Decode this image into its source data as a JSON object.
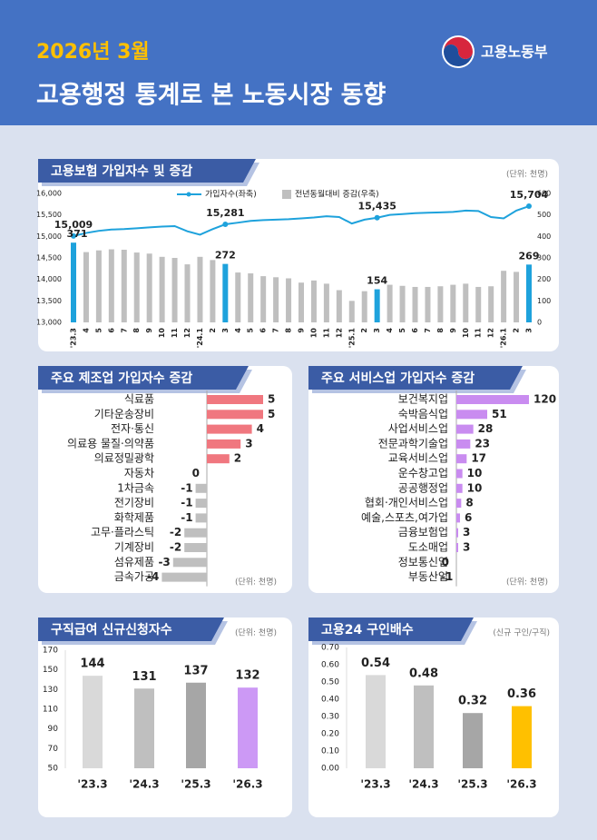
{
  "header": {
    "date": "2026년 3월",
    "title": "고용행정 통계로 본 노동시장 동향",
    "logo": "고용노동부"
  },
  "chart_data": [
    {
      "type": "combo",
      "title": "고용보험 가입자수 및 증감",
      "unit": "(단위: 천명)",
      "categories": [
        "'23.3",
        "4",
        "5",
        "6",
        "7",
        "8",
        "9",
        "10",
        "11",
        "12",
        "'24.1",
        "2",
        "3",
        "4",
        "5",
        "6",
        "7",
        "8",
        "9",
        "10",
        "11",
        "12",
        "'25.1",
        "2",
        "3",
        "4",
        "5",
        "6",
        "7",
        "8",
        "9",
        "10",
        "11",
        "12",
        "'26.1",
        "2",
        "3"
      ],
      "series": [
        {
          "name": "가입자수(좌축)",
          "type": "line",
          "color": "#1ea2dc",
          "values": [
            15009,
            15080,
            15130,
            15160,
            15170,
            15190,
            15210,
            15230,
            15240,
            15120,
            15040,
            15170,
            15281,
            15320,
            15360,
            15380,
            15390,
            15400,
            15420,
            15440,
            15470,
            15450,
            15300,
            15390,
            15435,
            15500,
            15520,
            15540,
            15550,
            15560,
            15570,
            15600,
            15590,
            15450,
            15420,
            15600,
            15704
          ],
          "value_labels": [
            "15,009",
            null,
            null,
            null,
            null,
            null,
            null,
            null,
            null,
            null,
            null,
            null,
            "15,281",
            null,
            null,
            null,
            null,
            null,
            null,
            null,
            null,
            null,
            null,
            null,
            "15,435",
            null,
            null,
            null,
            null,
            null,
            null,
            null,
            null,
            null,
            null,
            null,
            "15,704"
          ]
        },
        {
          "name": "전년동월대비 증감(우축)",
          "type": "bar",
          "axis": "y2",
          "color": "#bfbfbf",
          "highlight_color": "#1ea2dc",
          "values": [
            371,
            327,
            335,
            340,
            338,
            325,
            320,
            305,
            300,
            270,
            305,
            290,
            272,
            232,
            228,
            215,
            210,
            205,
            185,
            195,
            180,
            150,
            100,
            145,
            154,
            175,
            170,
            165,
            165,
            168,
            175,
            180,
            165,
            168,
            240,
            235,
            269
          ],
          "value_labels": [
            "371",
            null,
            null,
            null,
            null,
            null,
            null,
            null,
            null,
            null,
            null,
            null,
            "272",
            null,
            null,
            null,
            null,
            null,
            null,
            null,
            null,
            null,
            null,
            null,
            "154",
            null,
            null,
            null,
            null,
            null,
            null,
            null,
            null,
            null,
            null,
            null,
            "269"
          ]
        }
      ],
      "ylim": [
        13000,
        16000
      ],
      "yticks": [
        {
          "value": 13000,
          "label": "13,000"
        },
        {
          "value": 13500,
          "label": "13,500"
        },
        {
          "value": 14000,
          "label": "14,000"
        },
        {
          "value": 14500,
          "label": "14,500"
        },
        {
          "value": 15000,
          "label": "15,000"
        },
        {
          "value": 15500,
          "label": "15,500"
        },
        {
          "value": 16000,
          "label": "16,000"
        }
      ],
      "y2lim": [
        0,
        600
      ],
      "y2ticks": [
        0,
        100,
        200,
        300,
        400,
        500,
        600
      ]
    },
    {
      "type": "hbar",
      "title": "주요 제조업 가입자수 증감",
      "unit": "(단위: 천명)",
      "categories": [
        "식료품",
        "기타운송장비",
        "전자·통신",
        "의료용 물질·의약품",
        "의료정밀광학",
        "자동차",
        "1차금속",
        "전기장비",
        "화학제품",
        "고무·플라스틱",
        "기계장비",
        "섬유제품",
        "금속가공"
      ],
      "values": [
        5,
        5,
        4,
        3,
        2,
        0,
        -1,
        -1,
        -1,
        -2,
        -2,
        -3,
        -4
      ],
      "color": "#f0777f",
      "negative_color": "#bfbfbf"
    },
    {
      "type": "hbar",
      "title": "주요 서비스업 가입자수 증감",
      "unit": "(단위: 천명)",
      "categories": [
        "보건복지업",
        "숙박음식업",
        "사업서비스업",
        "전문과학기술업",
        "교육서비스업",
        "운수창고업",
        "공공행정업",
        "협회·개인서비스업",
        "예술,스포츠,여가업",
        "금융보험업",
        "도소매업",
        "정보통신업",
        "부동산업"
      ],
      "values": [
        120,
        51,
        28,
        23,
        17,
        10,
        10,
        8,
        6,
        3,
        3,
        0,
        -1
      ],
      "color": "#c98cf0",
      "negative_color": "#bfbfbf"
    },
    {
      "type": "bar",
      "title": "구직급여 신규신청자수",
      "unit": "(단위: 천명)",
      "categories": [
        "'23.3",
        "'24.3",
        "'25.3",
        "'26.3"
      ],
      "values": [
        144,
        131,
        137,
        132
      ],
      "colors": [
        "#d9d9d9",
        "#bfbfbf",
        "#a6a6a6",
        "#cc99f5"
      ],
      "ylim": [
        50,
        170
      ],
      "yticks": [
        50,
        70,
        90,
        110,
        130,
        150,
        170
      ]
    },
    {
      "type": "bar",
      "title": "고용24 구인배수",
      "unit": "(신규 구인/구직)",
      "categories": [
        "'23.3",
        "'24.3",
        "'25.3",
        "'26.3"
      ],
      "values": [
        0.54,
        0.48,
        0.32,
        0.36
      ],
      "colors": [
        "#d9d9d9",
        "#bfbfbf",
        "#a6a6a6",
        "#ffc000"
      ],
      "ylim": [
        0,
        0.7
      ],
      "yticks": [
        {
          "value": 0,
          "label": "0.00"
        },
        {
          "value": 0.1,
          "label": "0.10"
        },
        {
          "value": 0.2,
          "label": "0.20"
        },
        {
          "value": 0.3,
          "label": "0.30"
        },
        {
          "value": 0.4,
          "label": "0.40"
        },
        {
          "value": 0.5,
          "label": "0.50"
        },
        {
          "value": 0.6,
          "label": "0.60"
        },
        {
          "value": 0.7,
          "label": "0.70"
        }
      ]
    }
  ]
}
